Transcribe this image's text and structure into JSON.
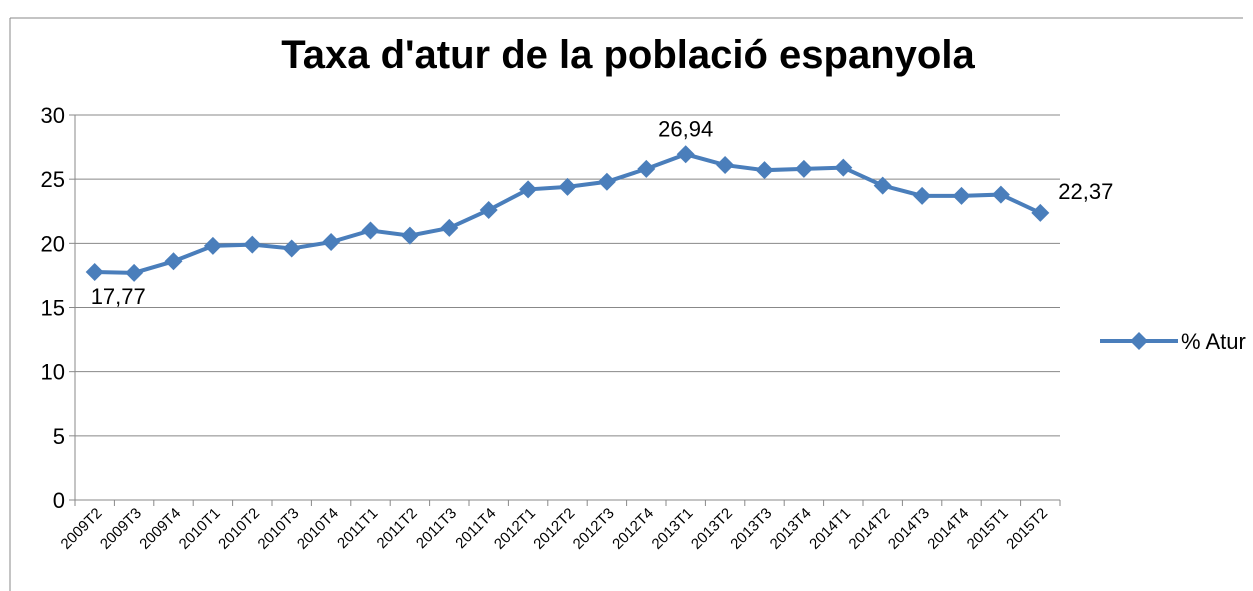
{
  "chart_data": {
    "type": "line",
    "title": "Taxa d'atur de la població espanyola",
    "categories": [
      "2009T2",
      "2009T3",
      "2009T4",
      "2010T1",
      "2010T2",
      "2010T3",
      "2010T4",
      "2011T1",
      "2011T2",
      "2011T3",
      "2011T4",
      "2012T1",
      "2012T2",
      "2012T3",
      "2012T4",
      "2013T1",
      "2013T2",
      "2013T3",
      "2013T4",
      "2014T1",
      "2014T2",
      "2014T3",
      "2014T4",
      "2015T1",
      "2015T2"
    ],
    "series": [
      {
        "name": "% Atur",
        "color": "#4a7ebb",
        "values": [
          17.77,
          17.7,
          18.6,
          19.8,
          19.9,
          19.6,
          20.1,
          21.0,
          20.6,
          21.2,
          22.6,
          24.2,
          24.4,
          24.8,
          25.8,
          26.94,
          26.1,
          25.7,
          25.8,
          25.9,
          24.5,
          23.7,
          23.7,
          23.8,
          22.37
        ],
        "value_labels": [
          "17,77",
          null,
          null,
          null,
          null,
          null,
          null,
          null,
          null,
          null,
          null,
          null,
          null,
          null,
          null,
          "26,94",
          null,
          null,
          null,
          null,
          null,
          null,
          null,
          null,
          "22,37"
        ]
      }
    ],
    "ylim": [
      0,
      30
    ],
    "yticks": [
      0,
      5,
      10,
      15,
      20,
      25,
      30
    ],
    "grid": true,
    "legend": "right"
  }
}
